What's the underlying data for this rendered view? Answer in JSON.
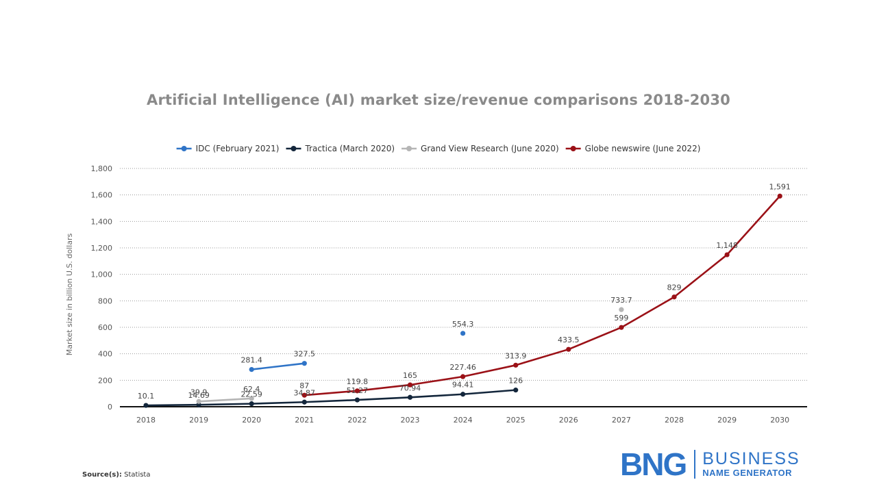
{
  "title": "Artificial Intelligence (AI) market size/revenue comparisons 2018-2030",
  "source_label": "Source(s):",
  "source_value": "Statista",
  "logo": {
    "mark": "BNG",
    "line1": "BUSINESS",
    "line2": "NAME GENERATOR",
    "color": "#2f74c7"
  },
  "chart_data": {
    "type": "line",
    "title": "Artificial Intelligence (AI) market size/revenue comparisons 2018-2030",
    "xlabel": "",
    "ylabel": "Market size in billion U.S. dollars",
    "categories": [
      "2018",
      "2019",
      "2020",
      "2021",
      "2022",
      "2023",
      "2024",
      "2025",
      "2026",
      "2027",
      "2028",
      "2029",
      "2030"
    ],
    "ylim": [
      0,
      1800
    ],
    "yticks": [
      0,
      200,
      400,
      600,
      800,
      1000,
      1200,
      1400,
      1600,
      1800
    ],
    "ytick_labels": [
      "0",
      "200",
      "400",
      "600",
      "800",
      "1,000",
      "1,200",
      "1,400",
      "1,600",
      "1,800"
    ],
    "grid": true,
    "legend_position": "top",
    "series": [
      {
        "name": "IDC (February 2021)",
        "color": "#2f74c7",
        "values": [
          null,
          null,
          281.4,
          327.5,
          null,
          null,
          554.3,
          null,
          null,
          null,
          null,
          null,
          null
        ],
        "labels": [
          null,
          null,
          "281.4",
          "327.5",
          null,
          null,
          "554.3",
          null,
          null,
          null,
          null,
          null,
          null
        ]
      },
      {
        "name": "Tractica (March 2020)",
        "color": "#13263b",
        "values": [
          10.1,
          14.69,
          22.59,
          34.87,
          51.27,
          70.94,
          94.41,
          126,
          null,
          null,
          null,
          null,
          null
        ],
        "labels": [
          "10.1",
          "14.69",
          "22.59",
          "34.87",
          "51.27",
          "70.94",
          "94.41",
          "126",
          null,
          null,
          null,
          null,
          null
        ]
      },
      {
        "name": "Grand View Research (June 2020)",
        "color": "#b5b5b5",
        "values": [
          null,
          39.9,
          62.4,
          null,
          null,
          null,
          null,
          null,
          null,
          733.7,
          null,
          null,
          null
        ],
        "labels": [
          null,
          "39.9",
          "62.4",
          null,
          null,
          null,
          null,
          null,
          null,
          "733.7",
          null,
          null,
          null
        ]
      },
      {
        "name": "Globe newswire (June 2022)",
        "color": "#9b1117",
        "values": [
          null,
          null,
          null,
          87,
          119.8,
          165,
          227.46,
          313.9,
          433.5,
          599,
          829,
          1148,
          1591
        ],
        "labels": [
          null,
          null,
          null,
          "87",
          "119.8",
          "165",
          "227.46",
          "313.9",
          "433.5",
          "599",
          "829",
          "1,148",
          "1,591"
        ]
      }
    ]
  }
}
